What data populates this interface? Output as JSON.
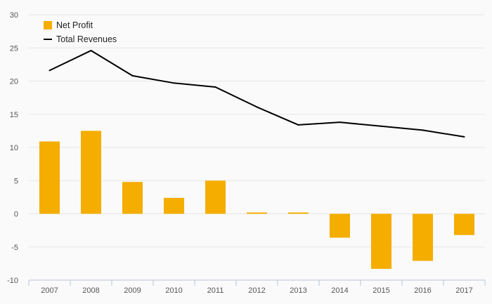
{
  "chart_data": {
    "type": "bar",
    "categories": [
      "2007",
      "2008",
      "2009",
      "2010",
      "2011",
      "2012",
      "2013",
      "2014",
      "2015",
      "2016",
      "2017"
    ],
    "series": [
      {
        "name": "Net Profit",
        "type": "bar",
        "color": "#f5ad00",
        "values": [
          10.9,
          12.5,
          4.8,
          2.4,
          5.0,
          0.2,
          0.2,
          -3.6,
          -8.3,
          -7.1,
          -3.2
        ]
      },
      {
        "name": "Total Revenues",
        "type": "line",
        "color": "#000000",
        "values": [
          21.6,
          24.6,
          20.8,
          19.7,
          19.1,
          16.1,
          13.4,
          13.8,
          13.2,
          12.6,
          11.6
        ]
      }
    ],
    "y_ticks": [
      "30",
      "25",
      "20",
      "15",
      "10",
      "5",
      "0",
      "-5",
      "-10"
    ],
    "ylim": [
      -10,
      30
    ],
    "grid": true,
    "legend": "top-left"
  }
}
